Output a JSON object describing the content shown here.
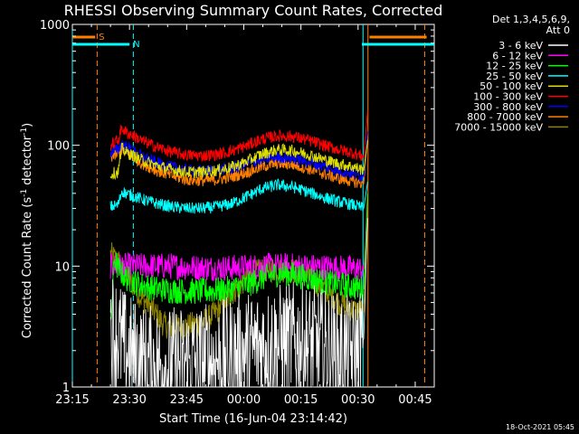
{
  "chart_data": {
    "type": "line",
    "title": "RHESSI Observing Summary Count Rates, Corrected",
    "xlabel": "Start Time (16-Jun-04 23:14:42)",
    "ylabel": "Corrected Count Rate (s",
    "ylabel_sup1": "-1",
    "ylabel_mid": " detector",
    "ylabel_sup2": "-1",
    "ylabel_end": ")",
    "y_scale": "log",
    "ylim": [
      1,
      1000
    ],
    "xlim_minutes": [
      0,
      95
    ],
    "x_ticks": [
      {
        "m": 0,
        "label": "23:15"
      },
      {
        "m": 15,
        "label": "23:30"
      },
      {
        "m": 30,
        "label": "23:45"
      },
      {
        "m": 45,
        "label": "00:00"
      },
      {
        "m": 60,
        "label": "00:15"
      },
      {
        "m": 75,
        "label": "00:30"
      },
      {
        "m": 90,
        "label": "00:45"
      }
    ],
    "y_ticks": [
      {
        "v": 1,
        "label": "1"
      },
      {
        "v": 10,
        "label": "10"
      },
      {
        "v": 100,
        "label": "100"
      },
      {
        "v": 1000,
        "label": "1000"
      }
    ],
    "legend_header1": "Det 1,3,4,5,6,9,",
    "legend_header2": "Att 0",
    "series": [
      {
        "name": "3 - 6 keV",
        "color": "#ffffff",
        "x": [
          10,
          12,
          14,
          18,
          22,
          26,
          30,
          34,
          38,
          42,
          46,
          50,
          54,
          58,
          62,
          66,
          70,
          74,
          76.5,
          77.5
        ],
        "y": [
          3.2,
          2.6,
          2.0,
          1.6,
          1.5,
          1.5,
          1.6,
          1.6,
          1.7,
          1.8,
          2.0,
          2.2,
          2.3,
          2.4,
          2.3,
          2.1,
          1.9,
          1.8,
          2.5,
          25
        ]
      },
      {
        "name": "6 - 12 keV",
        "color": "#ff00ff",
        "x": [
          10,
          14,
          18,
          22,
          26,
          30,
          34,
          38,
          42,
          46,
          50,
          54,
          58,
          62,
          66,
          70,
          74,
          76.5,
          77.5
        ],
        "y": [
          10,
          10,
          10,
          10,
          10,
          9.8,
          9.7,
          9.6,
          9.7,
          9.8,
          10,
          10,
          10,
          9.9,
          9.8,
          9.7,
          9.5,
          9.5,
          25
        ]
      },
      {
        "name": "12 - 25 keV",
        "color": "#00ff00",
        "x": [
          10,
          10.5,
          11,
          12,
          14,
          18,
          22,
          26,
          30,
          34,
          38,
          42,
          46,
          50,
          54,
          58,
          62,
          66,
          70,
          74,
          76.5,
          77.5
        ],
        "y": [
          3.0,
          5.5,
          12,
          9.5,
          8.0,
          7.0,
          6.5,
          6.3,
          6.2,
          6.2,
          6.3,
          6.5,
          7.0,
          8.0,
          8.7,
          8.5,
          8.0,
          7.4,
          7.0,
          6.7,
          6.5,
          40
        ]
      },
      {
        "name": "25 - 50 keV",
        "color": "#00ffff",
        "x": [
          10,
          12,
          13,
          14,
          16,
          18,
          22,
          26,
          30,
          34,
          38,
          42,
          46,
          50,
          54,
          58,
          62,
          66,
          70,
          74,
          76.5,
          77.5
        ],
        "y": [
          31,
          32,
          42,
          40,
          38,
          36,
          33,
          31,
          30,
          30,
          31,
          33,
          38,
          44,
          47,
          45,
          41,
          37,
          34,
          32,
          30,
          50
        ]
      },
      {
        "name": "50 - 100 keV",
        "color": "#dddd00",
        "x": [
          10,
          12,
          13,
          14,
          16,
          18,
          22,
          26,
          30,
          34,
          38,
          42,
          46,
          50,
          54,
          58,
          62,
          66,
          70,
          74,
          76.5,
          77.5
        ],
        "y": [
          58,
          60,
          95,
          88,
          82,
          76,
          68,
          63,
          60,
          60,
          62,
          66,
          74,
          85,
          92,
          90,
          84,
          76,
          70,
          66,
          62,
          110
        ]
      },
      {
        "name": "100 - 300 keV",
        "color": "#ff0000",
        "x": [
          10,
          12,
          13,
          14,
          16,
          18,
          22,
          26,
          30,
          34,
          38,
          42,
          46,
          50,
          54,
          58,
          62,
          66,
          70,
          74,
          76.5,
          77.5
        ],
        "y": [
          100,
          110,
          140,
          128,
          120,
          110,
          97,
          88,
          83,
          82,
          84,
          90,
          100,
          113,
          120,
          118,
          110,
          100,
          92,
          86,
          80,
          190
        ]
      },
      {
        "name": "300 - 800 keV",
        "color": "#0000ff",
        "x": [
          10,
          12,
          13,
          14,
          16,
          18,
          22,
          26,
          30,
          34,
          38,
          42,
          46,
          50,
          54,
          58,
          62,
          66,
          70,
          74,
          76.5,
          77.5
        ],
        "y": [
          88,
          92,
          105,
          98,
          90,
          82,
          72,
          66,
          62,
          61,
          62,
          65,
          70,
          77,
          80,
          78,
          73,
          67,
          62,
          58,
          55,
          130
        ]
      },
      {
        "name": "800 - 7000 keV",
        "color": "#ff8000",
        "x": [
          10,
          12,
          13,
          14,
          16,
          18,
          22,
          26,
          30,
          34,
          38,
          42,
          46,
          50,
          54,
          58,
          62,
          66,
          70,
          74,
          76.5,
          77.5
        ],
        "y": [
          80,
          84,
          92,
          88,
          80,
          72,
          62,
          56,
          52,
          51,
          52,
          55,
          60,
          67,
          71,
          69,
          64,
          58,
          53,
          50,
          48,
          120
        ]
      },
      {
        "name": "7000 - 15000 keV",
        "color": "#8b8000",
        "x": [
          10,
          12,
          14,
          16,
          18,
          20,
          22,
          24,
          26,
          30,
          34,
          38,
          42,
          46,
          50,
          54,
          58,
          62,
          66,
          70,
          74,
          76.5,
          77.5
        ],
        "y": [
          12.5,
          11,
          8.5,
          7.0,
          5.5,
          4.8,
          4.0,
          3.3,
          3.1,
          3.2,
          3.4,
          4.2,
          6.0,
          8.2,
          9.3,
          9.5,
          9.2,
          8.2,
          6.5,
          5.0,
          4.3,
          4.2,
          30
        ]
      }
    ],
    "flag_bars": [
      {
        "label": "S",
        "color": "#ff8000",
        "row": 0,
        "segments": [
          [
            0,
            6
          ],
          [
            78,
            93
          ]
        ]
      },
      {
        "label": "N",
        "color": "#00ffff",
        "row": 1,
        "segments": [
          [
            0,
            15
          ],
          [
            76,
            95
          ]
        ]
      }
    ],
    "vlines": [
      {
        "m": 0,
        "color": "#00ffff",
        "style": "solid"
      },
      {
        "m": 6.5,
        "color": "#ff8000",
        "style": "dashed"
      },
      {
        "m": 16,
        "color": "#00ffff",
        "style": "dashed"
      },
      {
        "m": 76.3,
        "color": "#00ffff",
        "style": "solid"
      },
      {
        "m": 77.6,
        "color": "#ff8000",
        "style": "solid"
      },
      {
        "m": 92.5,
        "color": "#ff8000",
        "style": "dashed"
      }
    ],
    "timestamp": "18-Oct-2021 05:45"
  }
}
